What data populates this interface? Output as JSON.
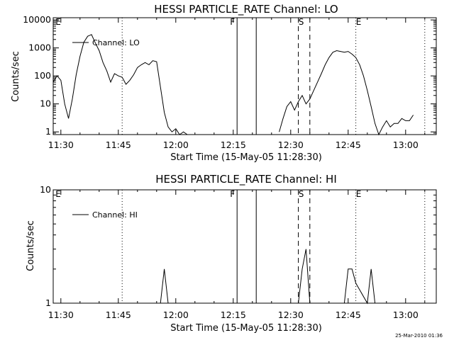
{
  "chart_data": [
    {
      "type": "line",
      "title": "HESSI PARTICLE_RATE Channel: LO",
      "xlabel": "Start Time (15-May-05 11:28:30)",
      "ylabel": "Counts/sec",
      "yscale": "log",
      "xlim": [
        "11:28",
        "13:08"
      ],
      "ylim": [
        0.8,
        12000
      ],
      "x_ticks": [
        "11:30",
        "11:45",
        "12:00",
        "12:15",
        "12:30",
        "12:45",
        "13:00"
      ],
      "y_ticks": [
        "1",
        "10",
        "100",
        "1000",
        "10000"
      ],
      "legend": "top-left",
      "series": [
        {
          "name": "Channel: LO",
          "x": [
            "11:28",
            "11:29",
            "11:30",
            "11:31",
            "11:32",
            "11:33",
            "11:34",
            "11:35",
            "11:36",
            "11:37",
            "11:38",
            "11:39",
            "11:40",
            "11:41",
            "11:42",
            "11:43",
            "11:44",
            "11:45",
            "11:46",
            "11:47",
            "11:48",
            "11:49",
            "11:50",
            "11:51",
            "11:52",
            "11:53",
            "11:54",
            "11:55",
            "11:56",
            "11:57",
            "11:58",
            "11:59",
            "12:00",
            "12:01",
            "12:02",
            "12:03",
            "12:27",
            "12:28",
            "12:29",
            "12:30",
            "12:31",
            "12:32",
            "12:33",
            "12:34",
            "12:35",
            "12:36",
            "12:37",
            "12:38",
            "12:39",
            "12:40",
            "12:41",
            "12:42",
            "12:43",
            "12:44",
            "12:45",
            "12:46",
            "12:47",
            "12:48",
            "12:49",
            "12:50",
            "12:51",
            "12:52",
            "12:53",
            "12:54",
            "12:55",
            "12:56",
            "12:57",
            "12:58",
            "12:59",
            "13:00",
            "13:01",
            "13:02"
          ],
          "y": [
            60,
            100,
            70,
            10,
            3,
            15,
            110,
            500,
            1600,
            2600,
            3000,
            1500,
            800,
            300,
            150,
            60,
            120,
            100,
            90,
            50,
            70,
            110,
            200,
            250,
            300,
            250,
            350,
            320,
            40,
            5,
            1.5,
            1,
            1.3,
            0.8,
            1,
            0.8,
            1,
            3,
            8,
            12,
            6,
            12,
            20,
            10,
            15,
            30,
            60,
            120,
            250,
            450,
            700,
            800,
            750,
            700,
            750,
            600,
            450,
            250,
            100,
            30,
            8,
            2,
            0.8,
            1.5,
            2.5,
            1.5,
            2,
            2,
            3,
            2.5,
            2.5,
            4
          ]
        }
      ],
      "annotations": [
        "E",
        "F",
        "S",
        "E"
      ]
    },
    {
      "type": "line",
      "title": "HESSI PARTICLE_RATE Channel: HI",
      "xlabel": "Start Time (15-May-05 11:28:30)",
      "ylabel": "Counts/sec",
      "yscale": "log",
      "xlim": [
        "11:28",
        "13:08"
      ],
      "ylim": [
        1,
        10
      ],
      "x_ticks": [
        "11:30",
        "11:45",
        "12:00",
        "12:15",
        "12:30",
        "12:45",
        "13:00"
      ],
      "y_ticks": [
        "1",
        "10"
      ],
      "legend": "top-left",
      "series": [
        {
          "name": "Channel: HI",
          "x": [
            "11:56",
            "11:57",
            "11:58",
            "12:32",
            "12:33",
            "12:34",
            "12:35",
            "12:44",
            "12:45",
            "12:46",
            "12:47",
            "12:50",
            "12:51",
            "12:52"
          ],
          "y": [
            1,
            2,
            1,
            1,
            2,
            3,
            1,
            1,
            2,
            2,
            1.5,
            1,
            2,
            1
          ]
        }
      ],
      "annotations": [
        "E",
        "F",
        "S",
        "E"
      ]
    }
  ],
  "footer": {
    "stamp": "25-Mar-2010 01:36"
  }
}
